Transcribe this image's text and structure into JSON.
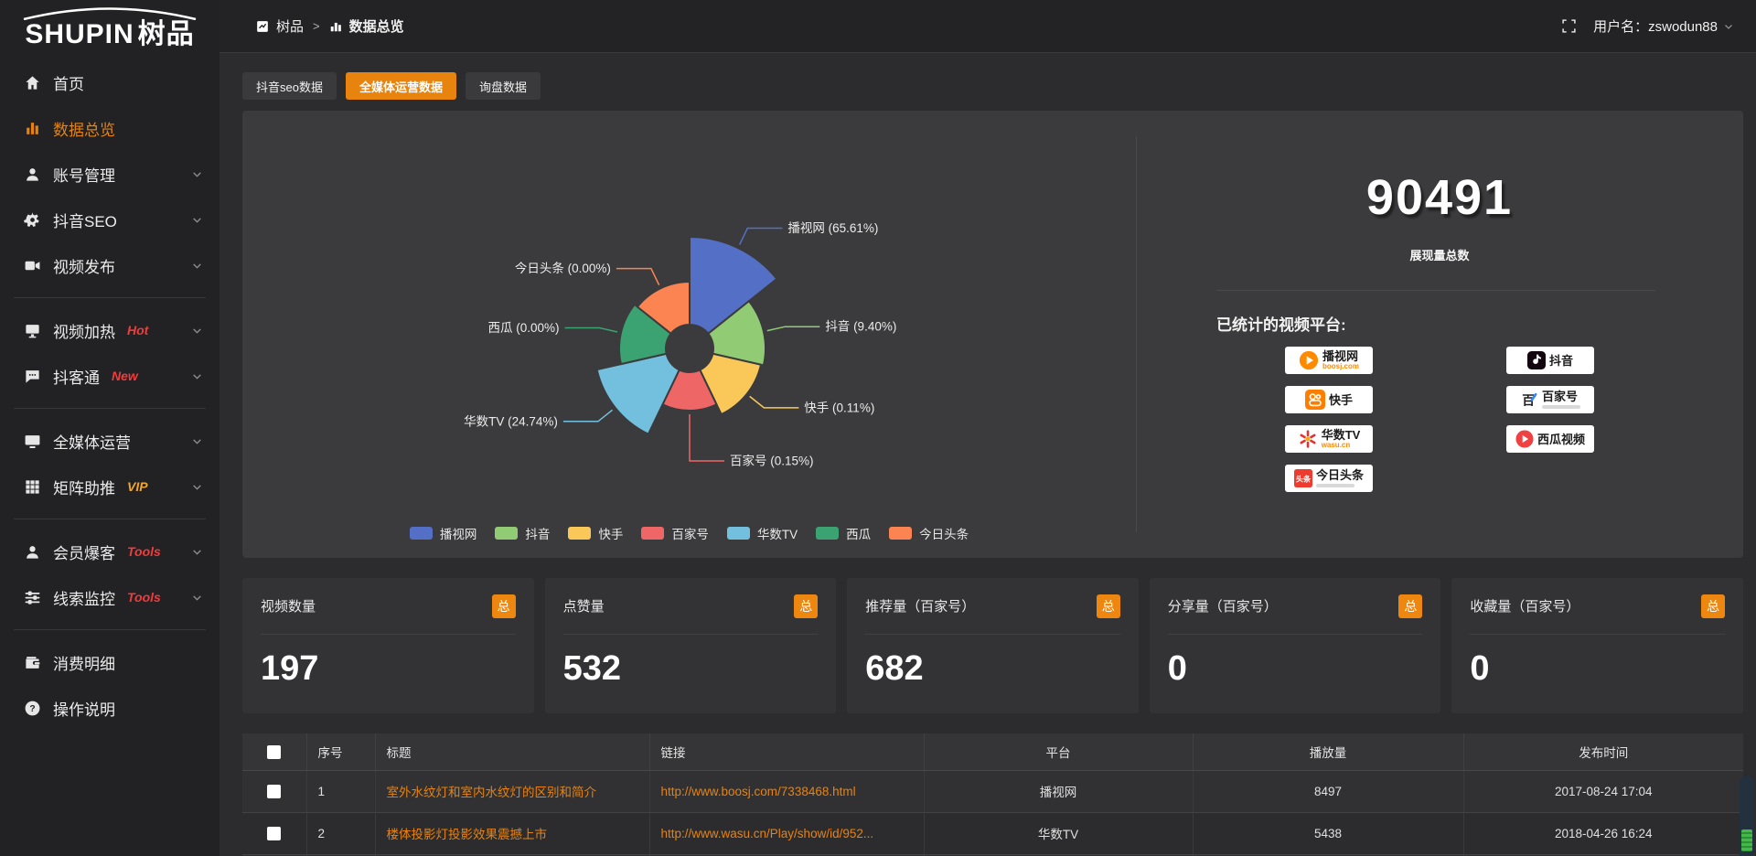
{
  "colors": {
    "accent": "#e8820e",
    "tag_red": "#f23c3c",
    "tag_yellow": "#f0a732"
  },
  "logo": {
    "en": "SHUPIN",
    "cn": "树品"
  },
  "topbar": {
    "breadcrumb_home": "树品",
    "breadcrumb_sep": ">",
    "breadcrumb_current": "数据总览",
    "user_label": "用户名：zswodun88"
  },
  "tabs": [
    {
      "label": "抖音seo数据",
      "active": false
    },
    {
      "label": "全媒体运营数据",
      "active": true
    },
    {
      "label": "询盘数据",
      "active": false
    }
  ],
  "sidebar": {
    "items": [
      {
        "key": "home",
        "icon": "home",
        "label": "首页",
        "active": false,
        "chevron": false
      },
      {
        "key": "data-overview",
        "icon": "bar-chart",
        "label": "数据总览",
        "active": true,
        "chevron": false
      },
      {
        "key": "account-management",
        "icon": "user",
        "label": "账号管理",
        "chevron": true
      },
      {
        "key": "douyin-seo",
        "icon": "gear",
        "label": "抖音SEO",
        "chevron": true
      },
      {
        "key": "video-publish",
        "icon": "video",
        "label": "视频发布",
        "chevron": true,
        "divider_after": true
      },
      {
        "key": "video-heat",
        "icon": "monitor",
        "label": "视频加热",
        "tag": "Hot",
        "tag_color": "#f23c3c",
        "chevron": true
      },
      {
        "key": "douketong",
        "icon": "chat",
        "label": "抖客通",
        "tag": "New",
        "tag_color": "#f23c3c",
        "chevron": true,
        "divider_after": true
      },
      {
        "key": "media-operation",
        "icon": "screen",
        "label": "全媒体运营",
        "chevron": true
      },
      {
        "key": "matrix-boost",
        "icon": "grid",
        "label": "矩阵助推",
        "tag": "VIP",
        "tag_color": "#f0a732",
        "chevron": true,
        "divider_after": true
      },
      {
        "key": "member-baoke",
        "icon": "user2",
        "label": "会员爆客",
        "tag": "Tools",
        "tag_color": "#f23c3c",
        "chevron": true
      },
      {
        "key": "clue-monitor",
        "icon": "sliders",
        "label": "线索监控",
        "tag": "Tools",
        "tag_color": "#f23c3c",
        "chevron": true,
        "divider_after": true
      },
      {
        "key": "consume-detail",
        "icon": "wallet",
        "label": "消费明细",
        "chevron": false
      },
      {
        "key": "operation-guide",
        "icon": "question",
        "label": "操作说明",
        "chevron": false
      }
    ]
  },
  "chart_data": {
    "type": "pie",
    "variant": "nightingale-rose",
    "start_angle": "top",
    "direction": "clockwise",
    "equal_angles": true,
    "inner_radius": 26,
    "slices": [
      {
        "name": "播视网",
        "pct": 65.61,
        "label": "播视网 (65.61%)",
        "color": "#5470c6",
        "outer_radius": 122
      },
      {
        "name": "抖音",
        "pct": 9.4,
        "label": "抖音 (9.40%)",
        "color": "#91cc75",
        "outer_radius": 83
      },
      {
        "name": "快手",
        "pct": 0.11,
        "label": "快手 (0.11%)",
        "color": "#fac858",
        "outer_radius": 80
      },
      {
        "name": "百家号",
        "pct": 0.15,
        "label": "百家号 (0.15%)",
        "color": "#ee6666",
        "outer_radius": 68
      },
      {
        "name": "华数TV",
        "pct": 24.74,
        "label": "华数TV (24.74%)",
        "color": "#73c0de",
        "outer_radius": 104
      },
      {
        "name": "西瓜",
        "pct": 0.0,
        "label": "西瓜 (0.00%)",
        "color": "#3ba272",
        "outer_radius": 77
      },
      {
        "name": "今日头条",
        "pct": 0.0,
        "label": "今日头条 (0.00%)",
        "color": "#fc8452",
        "outer_radius": 73
      }
    ],
    "legend": {
      "position": "bottom",
      "items": [
        "播视网",
        "抖音",
        "快手",
        "百家号",
        "华数TV",
        "西瓜",
        "今日头条"
      ]
    }
  },
  "summary": {
    "value": "90491",
    "label": "展现量总数",
    "platforms_title": "已统计的视频平台:"
  },
  "platforms": {
    "col1": [
      {
        "name": "播视网",
        "sub": "boosj.com",
        "logo": "boosj"
      },
      {
        "name": "快手",
        "logo": "kuaishou"
      },
      {
        "name": "华数TV",
        "sub": "wasu.cn",
        "logo": "wasu"
      },
      {
        "name": "今日头条",
        "logo": "toutiao",
        "sub_bar": true
      }
    ],
    "col2": [
      {
        "name": "抖音",
        "logo": "douyin"
      },
      {
        "name": "百家号",
        "logo": "baijiahao",
        "sub_bar": true
      },
      {
        "name": "西瓜视频",
        "logo": "xigua"
      }
    ]
  },
  "stat_cards": [
    {
      "title": "视频数量",
      "badge": "总",
      "value": "197"
    },
    {
      "title": "点赞量",
      "badge": "总",
      "value": "532"
    },
    {
      "title": "推荐量（百家号）",
      "badge": "总",
      "value": "682"
    },
    {
      "title": "分享量（百家号）",
      "badge": "总",
      "value": "0"
    },
    {
      "title": "收藏量（百家号）",
      "badge": "总",
      "value": "0"
    }
  ],
  "table": {
    "columns": [
      "序号",
      "标题",
      "链接",
      "平台",
      "播放量",
      "发布时间"
    ],
    "rows": [
      {
        "no": "1",
        "title": "室外水纹灯和室内水纹灯的区别和简介",
        "link": "http://www.boosj.com/7338468.html",
        "platform": "播视网",
        "plays": "8497",
        "time": "2017-08-24 17:04"
      },
      {
        "no": "2",
        "title": "楼体投影灯投影效果震撼上市",
        "link": "http://www.wasu.cn/Play/show/id/952...",
        "platform": "华数TV",
        "plays": "5438",
        "time": "2018-04-26 16:24"
      }
    ]
  }
}
